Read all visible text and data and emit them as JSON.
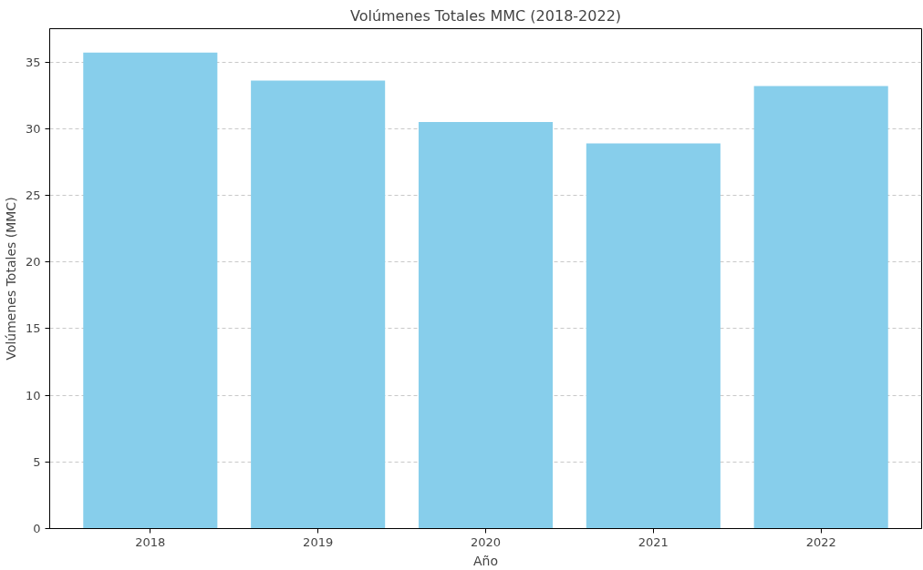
{
  "chart_data": {
    "type": "bar",
    "title": "Volúmenes Totales MMC (2018-2022)",
    "xlabel": "Año",
    "ylabel": "Volúmenes Totales (MMC)",
    "categories": [
      "2018",
      "2019",
      "2020",
      "2021",
      "2022"
    ],
    "values": [
      35.7,
      33.6,
      30.5,
      28.9,
      33.2
    ],
    "color": "#87ceeb",
    "ylim": [
      0,
      37.5
    ],
    "yticks": [
      0,
      5,
      10,
      15,
      20,
      25,
      30,
      35
    ],
    "grid": "y"
  }
}
